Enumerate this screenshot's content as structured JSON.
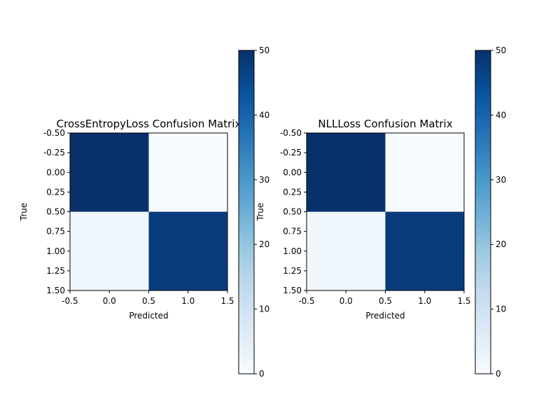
{
  "chart_data": [
    {
      "type": "heatmap",
      "title": "CrossEntropyLoss Confusion Matrix",
      "xlabel": "Predicted",
      "ylabel": "True",
      "xlim": [
        -0.5,
        1.5
      ],
      "ylim": [
        1.5,
        -0.5
      ],
      "x_ticks": [
        "-0.5",
        "0.0",
        "0.5",
        "1.0",
        "1.5"
      ],
      "y_ticks": [
        "-0.50",
        "-0.25",
        "0.00",
        "0.25",
        "0.50",
        "0.75",
        "1.00",
        "1.25",
        "1.50"
      ],
      "matrix": [
        [
          50,
          0
        ],
        [
          2,
          48
        ]
      ],
      "colormap": "Blues",
      "colorbar": {
        "min": 0,
        "max": 50,
        "ticks": [
          "0",
          "10",
          "20",
          "30",
          "40",
          "50"
        ]
      }
    },
    {
      "type": "heatmap",
      "title": "NLLLoss Confusion Matrix",
      "xlabel": "Predicted",
      "ylabel": "True",
      "xlim": [
        -0.5,
        1.5
      ],
      "ylim": [
        1.5,
        -0.5
      ],
      "x_ticks": [
        "-0.5",
        "0.0",
        "0.5",
        "1.0",
        "1.5"
      ],
      "y_ticks": [
        "-0.50",
        "-0.25",
        "0.00",
        "0.25",
        "0.50",
        "0.75",
        "1.00",
        "1.25",
        "1.50"
      ],
      "matrix": [
        [
          50,
          0
        ],
        [
          2,
          48
        ]
      ],
      "colormap": "Blues",
      "colorbar": {
        "min": 0,
        "max": 50,
        "ticks": [
          "0",
          "10",
          "20",
          "30",
          "40",
          "50"
        ]
      }
    }
  ]
}
